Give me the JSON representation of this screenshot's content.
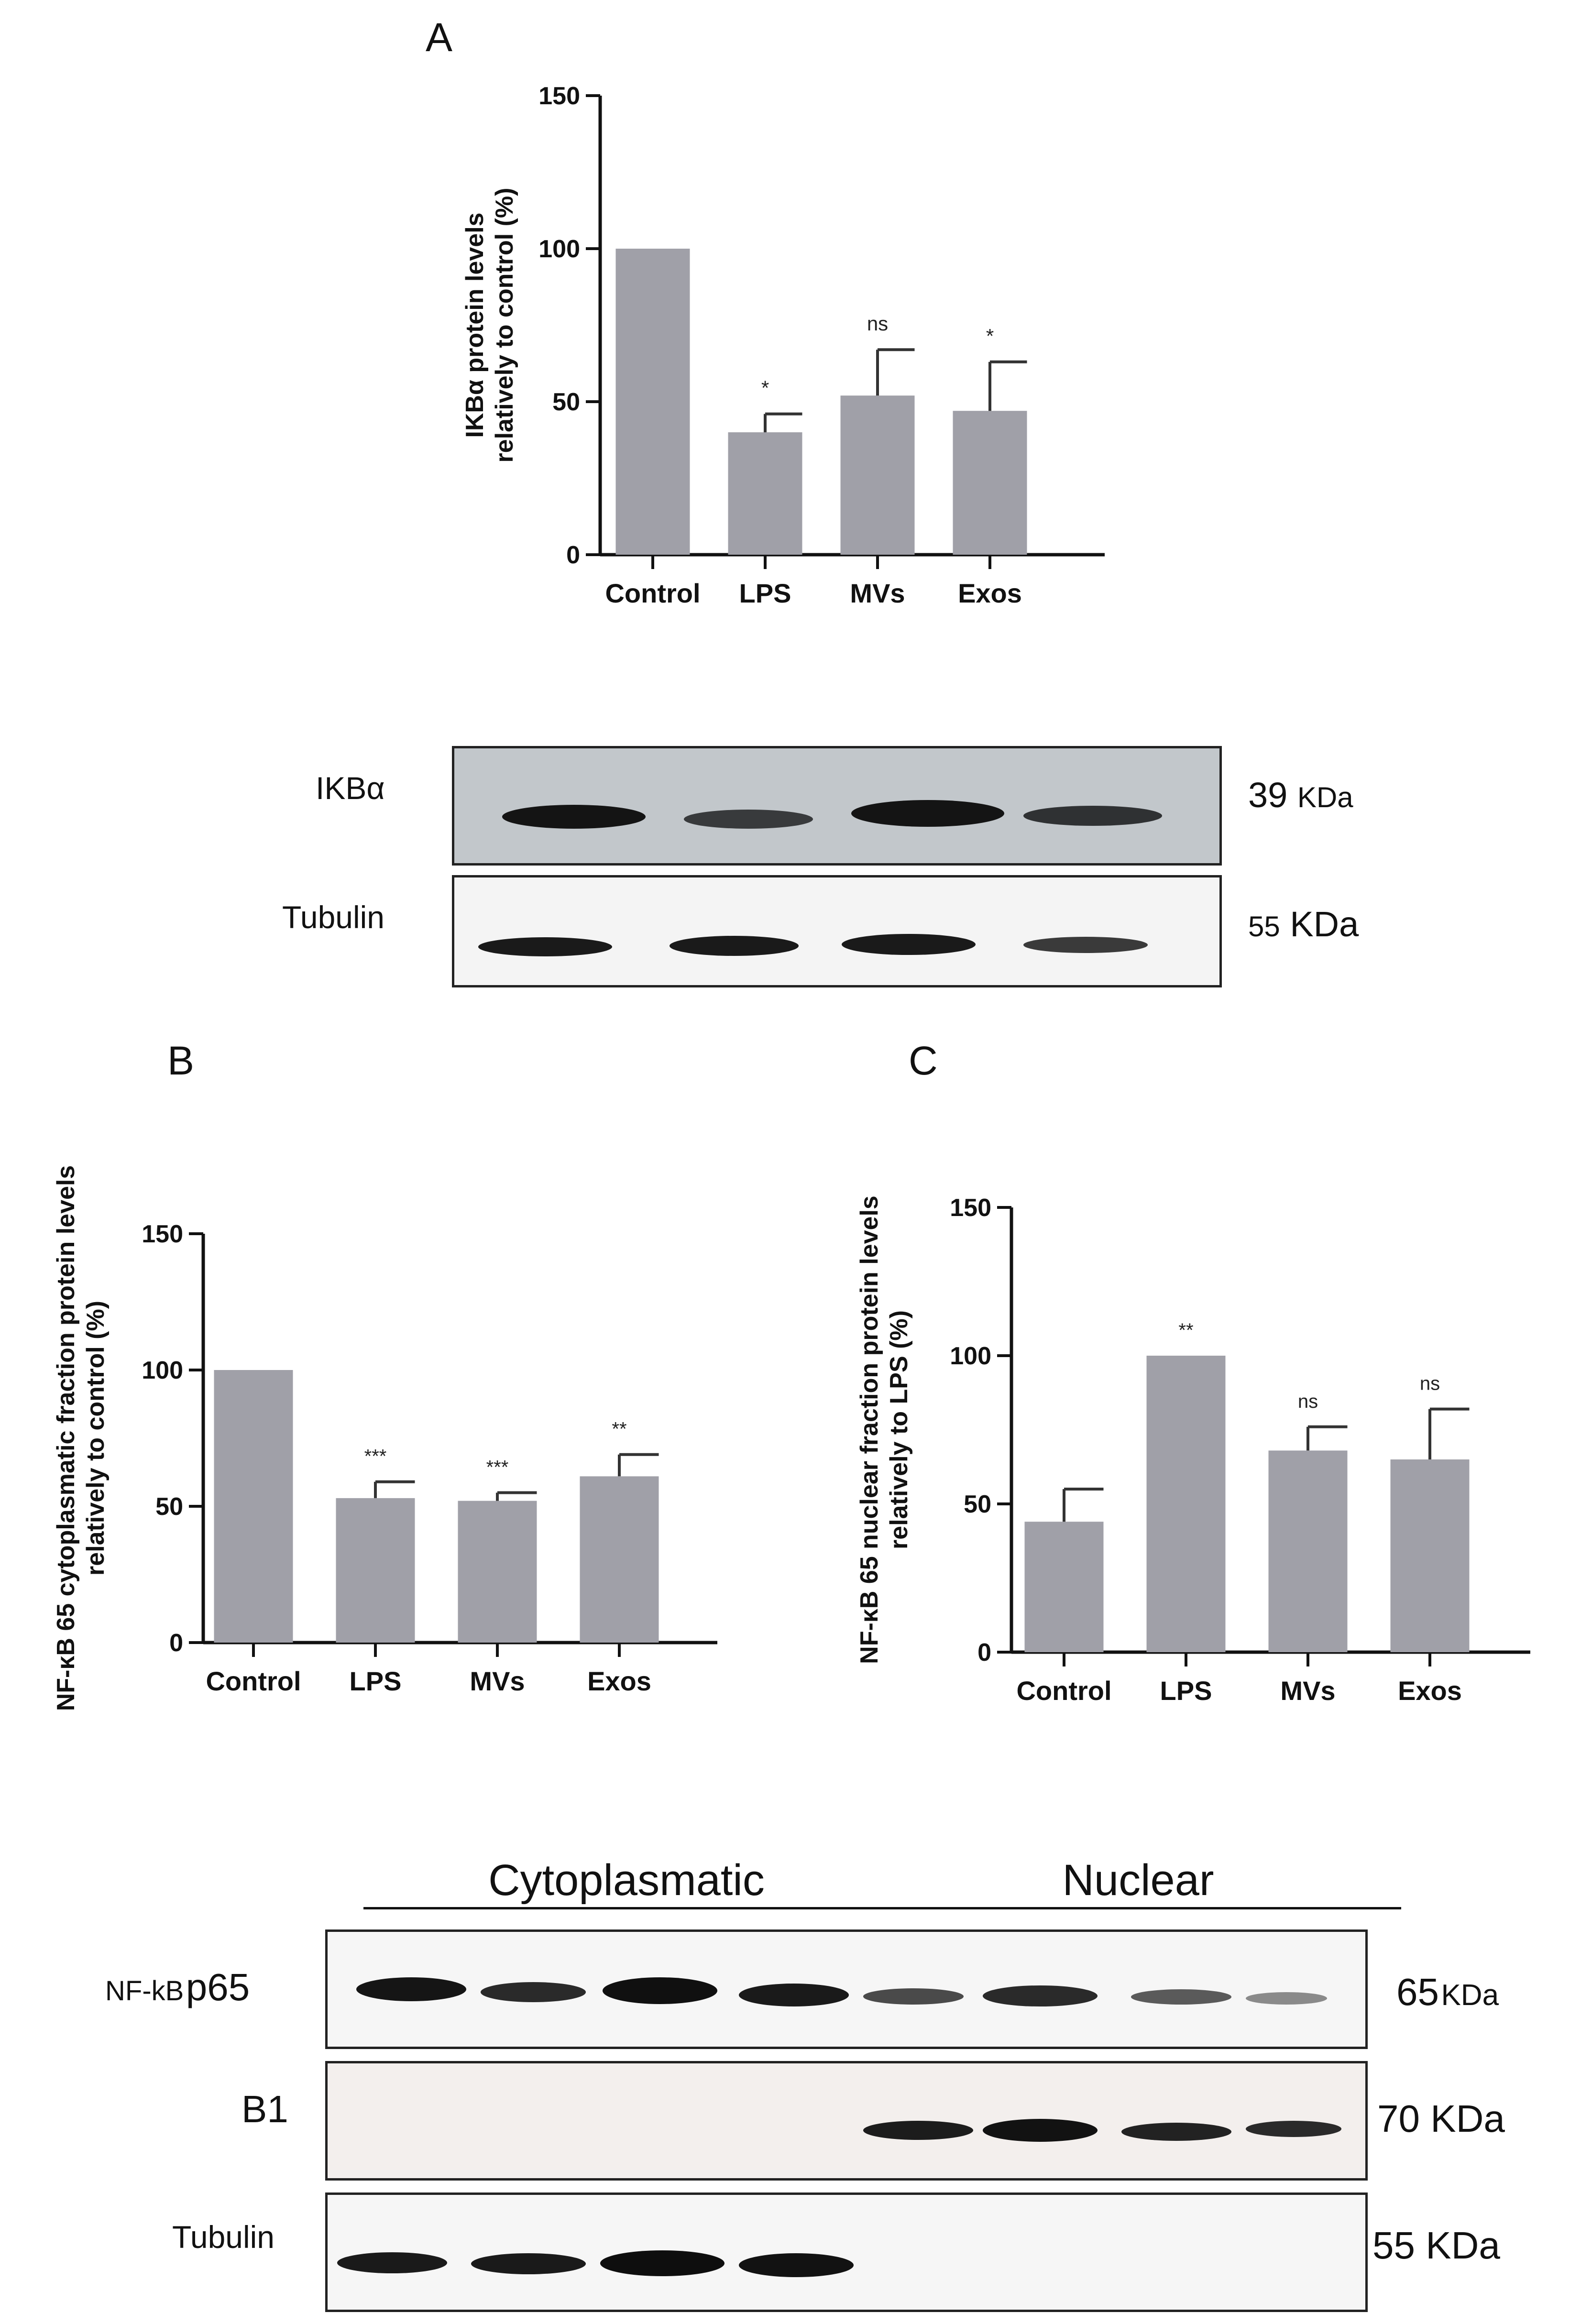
{
  "panels": {
    "A": "A",
    "B": "B",
    "C": "C"
  },
  "chart_data": [
    {
      "id": "A",
      "type": "bar",
      "categories": [
        "Control",
        "LPS",
        "MVs",
        "Exos"
      ],
      "values": [
        100,
        40,
        52,
        47
      ],
      "errors": [
        0,
        6,
        15,
        16
      ],
      "significance": [
        "",
        "*",
        "ns",
        "*"
      ],
      "ylabel": "IKBα protein levels relatively to control (%)",
      "ylabel_lines": [
        "IKBα protein levels",
        "relatively to control (%)"
      ],
      "ylim": [
        0,
        150
      ],
      "yticks": [
        0,
        50,
        100,
        150
      ],
      "bar_color": "#a0a0a8"
    },
    {
      "id": "B",
      "type": "bar",
      "categories": [
        "Control",
        "LPS",
        "MVs",
        "Exos"
      ],
      "values": [
        100,
        53,
        52,
        61
      ],
      "errors": [
        0,
        6,
        3,
        8
      ],
      "significance": [
        "",
        "***",
        "***",
        "**"
      ],
      "ylabel": "NF-κB 65 cytoplasmatic fraction protein levels relatively to control (%)",
      "ylabel_lines": [
        "NF-κB 65 cytoplasmatic fraction protein levels",
        "relatively to control (%)"
      ],
      "ylim": [
        0,
        150
      ],
      "yticks": [
        0,
        50,
        100,
        150
      ],
      "bar_color": "#a0a0a8"
    },
    {
      "id": "C",
      "type": "bar",
      "categories": [
        "Control",
        "LPS",
        "MVs",
        "Exos"
      ],
      "values": [
        44,
        100,
        68,
        65
      ],
      "errors": [
        11,
        0,
        8,
        17
      ],
      "significance": [
        "",
        "**",
        "ns",
        "ns"
      ],
      "ylabel": "NF-κB 65 nuclear fraction protein levels relatively to LPS (%)",
      "ylabel_lines": [
        "NF-κB 65 nuclear fraction protein levels",
        "relatively to LPS (%)"
      ],
      "ylim": [
        0,
        150
      ],
      "yticks": [
        0,
        50,
        100,
        150
      ],
      "bar_color": "#a0a0a8"
    }
  ],
  "blots_top": {
    "ikba": {
      "label": "IKBα",
      "size_num": "39",
      "size_unit": "KDa"
    },
    "tubulin": {
      "label": "Tubulin",
      "size_num": "55",
      "size_unit": "KDa"
    }
  },
  "blots_bottom": {
    "fraction_cyto": "Cytoplasmatic",
    "fraction_nuc": "Nuclear",
    "p65": {
      "label_prefix": "NF-kB",
      "label_main": "p65",
      "size_num": "65",
      "size_unit": "KDa"
    },
    "b1": {
      "label": "B1",
      "size": "70 KDa"
    },
    "tubulin": {
      "label": "Tubulin",
      "size": "55 KDa"
    }
  }
}
